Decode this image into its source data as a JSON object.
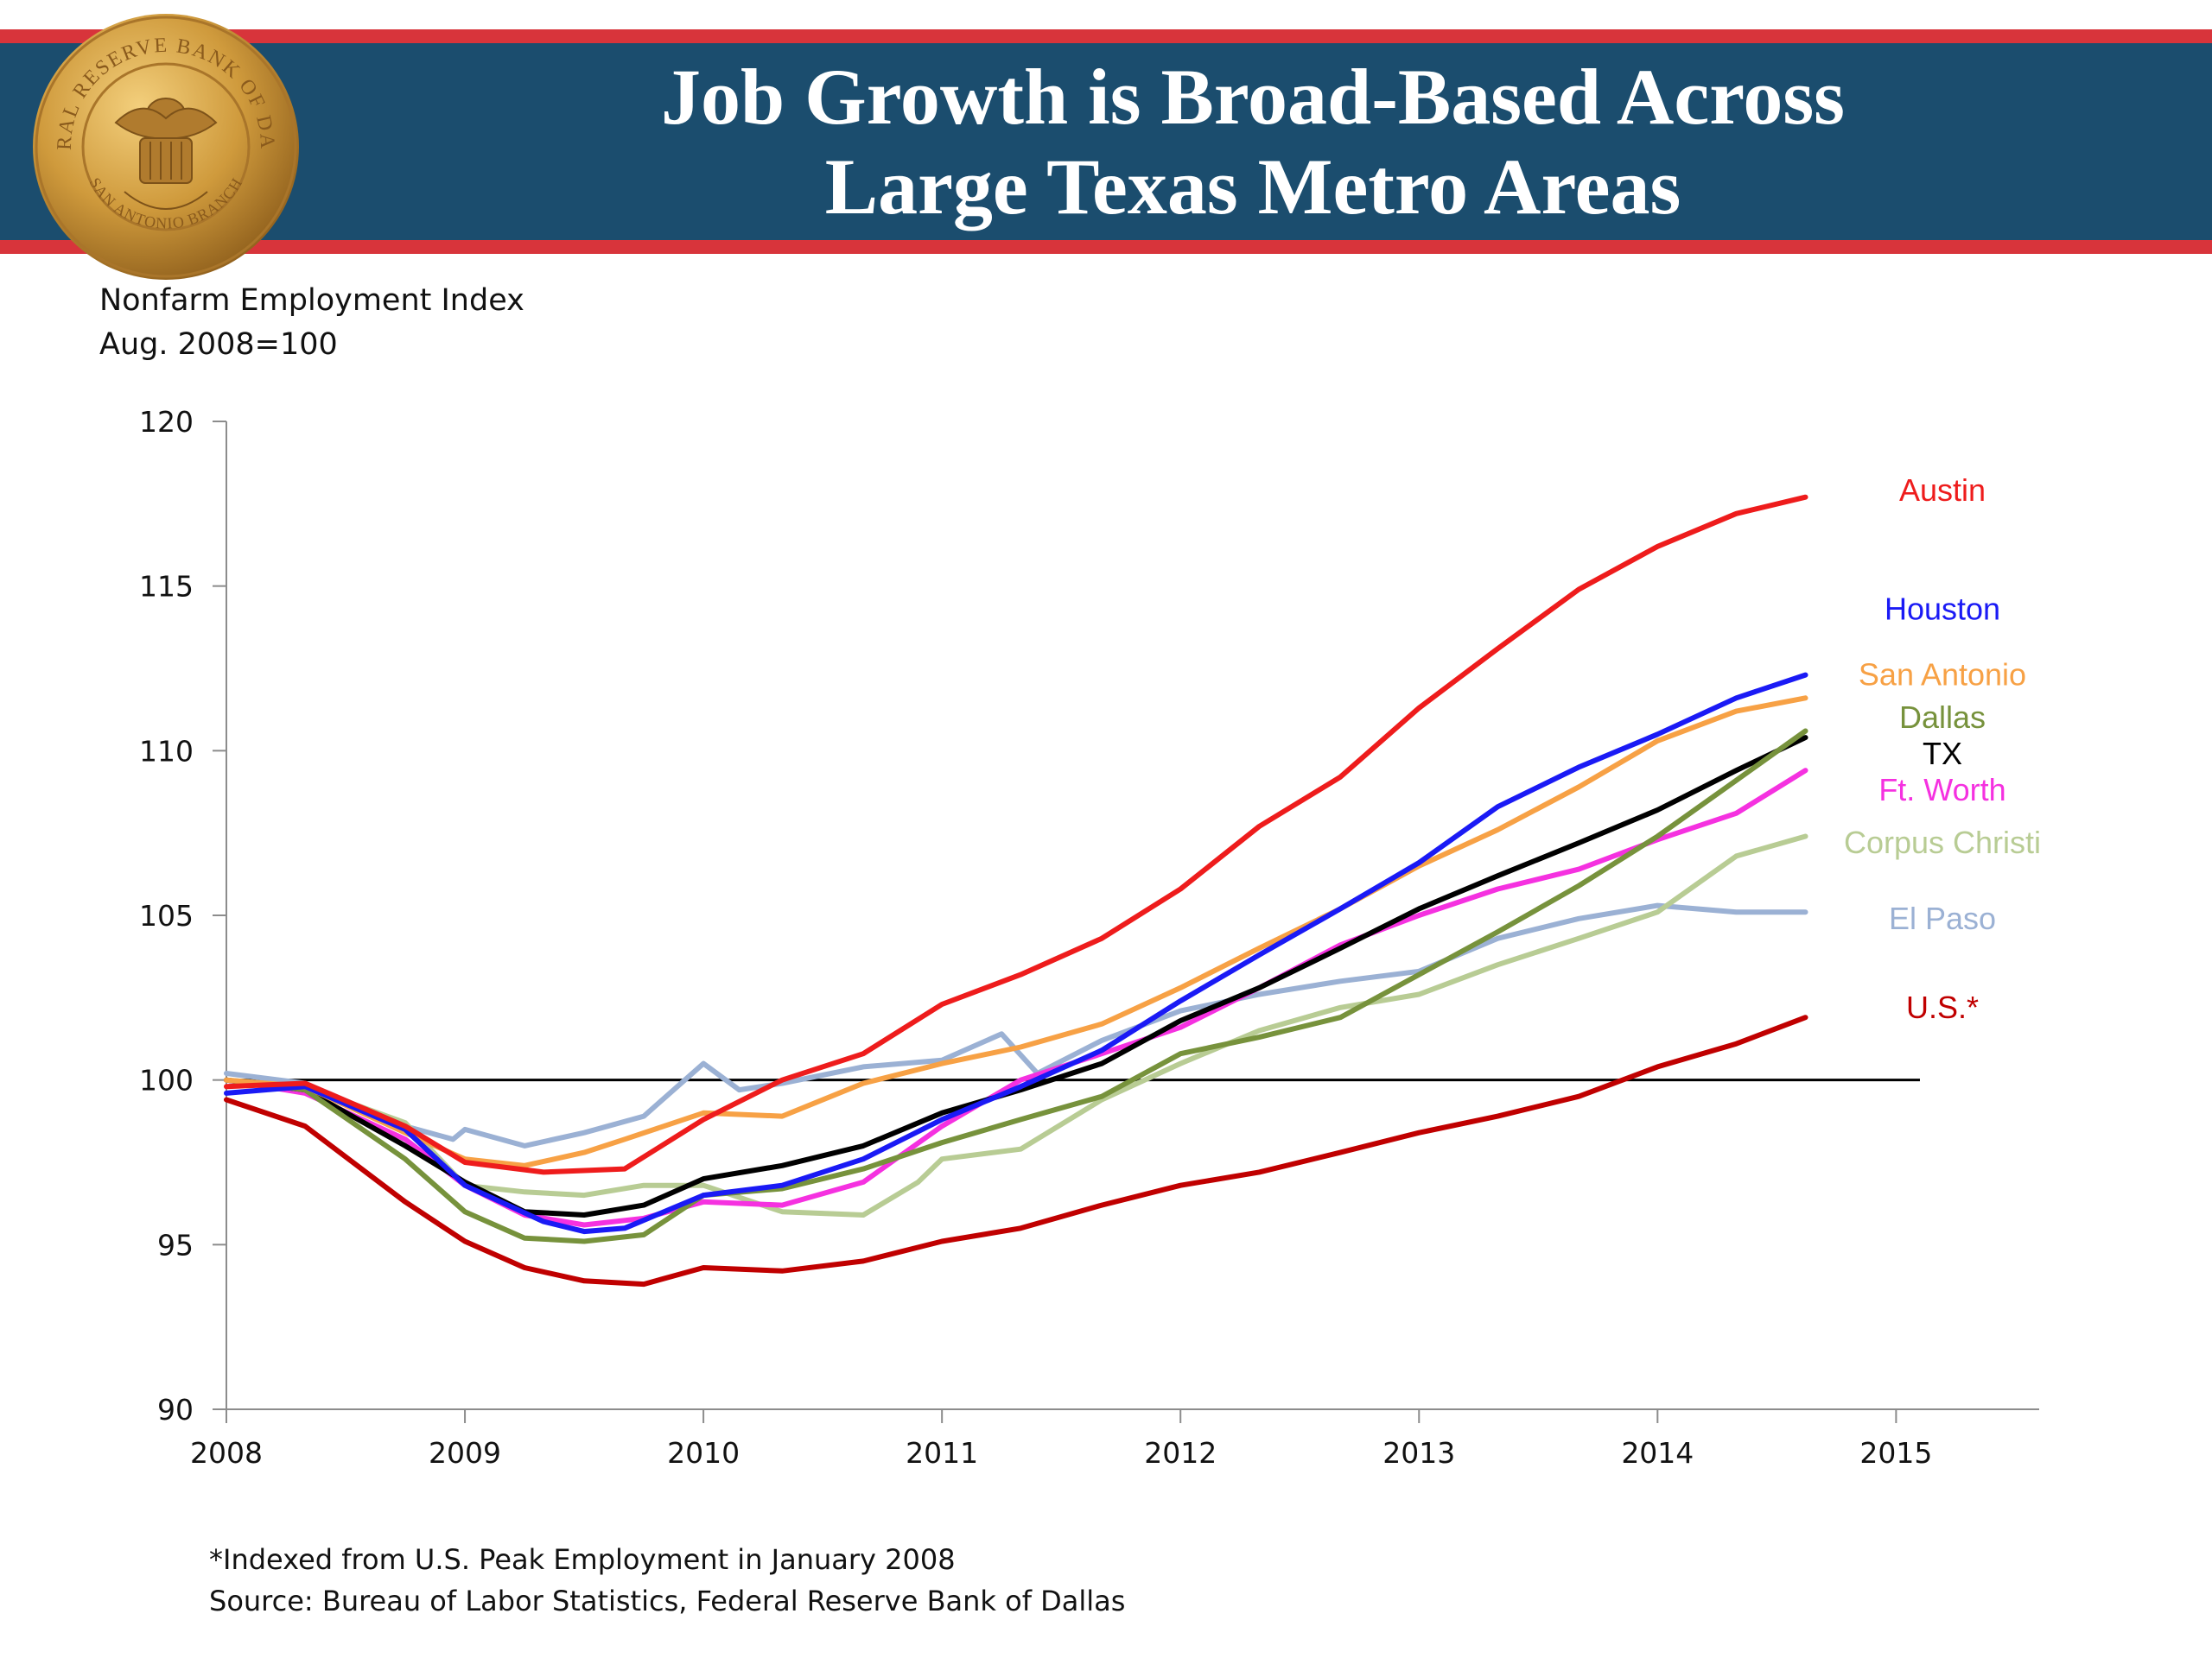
{
  "header": {
    "title_line1": "Job Growth is Broad-Based Across",
    "title_line2": "Large Texas Metro Areas",
    "seal_text": "FEDERAL RESERVE BANK OF DALLAS",
    "seal_branch": "SAN ANTONIO BRANCH"
  },
  "colors": {
    "banner_bg": "#1b4d6e",
    "banner_stripe": "#d8343b",
    "seal_gold": "#c9973a"
  },
  "chart_data": {
    "type": "line",
    "ylabel_line1": "Nonfarm  Employment Index",
    "ylabel_line2": "Aug. 2008=100",
    "xlim": [
      2008,
      2015.6
    ],
    "ylim": [
      90,
      120
    ],
    "x_ticks": [
      "2008",
      "2009",
      "2010",
      "2011",
      "2012",
      "2013",
      "2014",
      "2015"
    ],
    "y_ticks": [
      "90",
      "95",
      "100",
      "105",
      "110",
      "115",
      "120"
    ],
    "reference_line": 100,
    "reference_line_x": [
      2008,
      2015.1
    ],
    "grid": false,
    "series": [
      {
        "name": "Austin",
        "color": "#ee1c1c",
        "points": [
          [
            2008.0,
            99.8
          ],
          [
            2008.33,
            99.9
          ],
          [
            2008.75,
            98.6
          ],
          [
            2009.0,
            97.5
          ],
          [
            2009.33,
            97.2
          ],
          [
            2009.67,
            97.3
          ],
          [
            2010.0,
            98.8
          ],
          [
            2010.33,
            100.0
          ],
          [
            2010.67,
            100.8
          ],
          [
            2011.0,
            102.3
          ],
          [
            2011.33,
            103.2
          ],
          [
            2011.67,
            104.3
          ],
          [
            2012.0,
            105.8
          ],
          [
            2012.33,
            107.7
          ],
          [
            2012.67,
            109.2
          ],
          [
            2013.0,
            111.3
          ],
          [
            2013.33,
            113.1
          ],
          [
            2013.67,
            114.9
          ],
          [
            2014.0,
            116.2
          ],
          [
            2014.33,
            117.2
          ],
          [
            2014.62,
            117.7
          ]
        ]
      },
      {
        "name": "Houston",
        "color": "#1a1af5",
        "points": [
          [
            2008.0,
            99.6
          ],
          [
            2008.33,
            99.8
          ],
          [
            2008.75,
            98.5
          ],
          [
            2009.0,
            96.8
          ],
          [
            2009.33,
            95.7
          ],
          [
            2009.5,
            95.4
          ],
          [
            2009.67,
            95.5
          ],
          [
            2010.0,
            96.5
          ],
          [
            2010.33,
            96.8
          ],
          [
            2010.67,
            97.6
          ],
          [
            2011.0,
            98.8
          ],
          [
            2011.33,
            99.8
          ],
          [
            2011.67,
            100.9
          ],
          [
            2012.0,
            102.4
          ],
          [
            2012.33,
            103.8
          ],
          [
            2012.67,
            105.2
          ],
          [
            2013.0,
            106.6
          ],
          [
            2013.33,
            108.3
          ],
          [
            2013.67,
            109.5
          ],
          [
            2014.0,
            110.5
          ],
          [
            2014.33,
            111.6
          ],
          [
            2014.62,
            112.3
          ]
        ]
      },
      {
        "name": "San Antonio",
        "color": "#f7a145",
        "points": [
          [
            2008.0,
            100.0
          ],
          [
            2008.33,
            99.8
          ],
          [
            2008.75,
            98.4
          ],
          [
            2009.0,
            97.6
          ],
          [
            2009.25,
            97.4
          ],
          [
            2009.5,
            97.8
          ],
          [
            2009.67,
            98.2
          ],
          [
            2010.0,
            99.0
          ],
          [
            2010.33,
            98.9
          ],
          [
            2010.67,
            99.9
          ],
          [
            2011.0,
            100.5
          ],
          [
            2011.33,
            101.0
          ],
          [
            2011.67,
            101.7
          ],
          [
            2012.0,
            102.8
          ],
          [
            2012.33,
            104.0
          ],
          [
            2012.67,
            105.2
          ],
          [
            2013.0,
            106.5
          ],
          [
            2013.33,
            107.6
          ],
          [
            2013.67,
            108.9
          ],
          [
            2014.0,
            110.3
          ],
          [
            2014.33,
            111.2
          ],
          [
            2014.62,
            111.6
          ]
        ]
      },
      {
        "name": "Dallas",
        "color": "#77923c",
        "points": [
          [
            2008.0,
            100.0
          ],
          [
            2008.33,
            99.7
          ],
          [
            2008.75,
            97.6
          ],
          [
            2009.0,
            96.0
          ],
          [
            2009.25,
            95.2
          ],
          [
            2009.5,
            95.1
          ],
          [
            2009.75,
            95.3
          ],
          [
            2010.0,
            96.5
          ],
          [
            2010.33,
            96.7
          ],
          [
            2010.67,
            97.3
          ],
          [
            2011.0,
            98.1
          ],
          [
            2011.33,
            98.8
          ],
          [
            2011.67,
            99.5
          ],
          [
            2012.0,
            100.8
          ],
          [
            2012.33,
            101.3
          ],
          [
            2012.67,
            101.9
          ],
          [
            2013.0,
            103.2
          ],
          [
            2013.33,
            104.5
          ],
          [
            2013.67,
            105.9
          ],
          [
            2014.0,
            107.4
          ],
          [
            2014.33,
            109.1
          ],
          [
            2014.62,
            110.6
          ]
        ]
      },
      {
        "name": "TX",
        "color": "#000000",
        "points": [
          [
            2008.0,
            100.0
          ],
          [
            2008.33,
            99.7
          ],
          [
            2008.75,
            98.0
          ],
          [
            2009.0,
            96.9
          ],
          [
            2009.25,
            96.0
          ],
          [
            2009.5,
            95.9
          ],
          [
            2009.75,
            96.2
          ],
          [
            2010.0,
            97.0
          ],
          [
            2010.33,
            97.4
          ],
          [
            2010.67,
            98.0
          ],
          [
            2011.0,
            99.0
          ],
          [
            2011.33,
            99.7
          ],
          [
            2011.67,
            100.5
          ],
          [
            2012.0,
            101.8
          ],
          [
            2012.33,
            102.8
          ],
          [
            2012.67,
            104.0
          ],
          [
            2013.0,
            105.2
          ],
          [
            2013.33,
            106.2
          ],
          [
            2013.67,
            107.2
          ],
          [
            2014.0,
            108.2
          ],
          [
            2014.33,
            109.4
          ],
          [
            2014.62,
            110.4
          ]
        ]
      },
      {
        "name": "Ft. Worth",
        "color": "#f531e0",
        "points": [
          [
            2008.0,
            100.0
          ],
          [
            2008.33,
            99.6
          ],
          [
            2008.75,
            98.2
          ],
          [
            2009.0,
            96.8
          ],
          [
            2009.25,
            95.9
          ],
          [
            2009.5,
            95.6
          ],
          [
            2009.75,
            95.8
          ],
          [
            2010.0,
            96.3
          ],
          [
            2010.33,
            96.2
          ],
          [
            2010.67,
            96.9
          ],
          [
            2011.0,
            98.6
          ],
          [
            2011.33,
            100.0
          ],
          [
            2011.67,
            100.8
          ],
          [
            2012.0,
            101.6
          ],
          [
            2012.33,
            102.8
          ],
          [
            2012.67,
            104.1
          ],
          [
            2013.0,
            105.0
          ],
          [
            2013.33,
            105.8
          ],
          [
            2013.67,
            106.4
          ],
          [
            2014.0,
            107.3
          ],
          [
            2014.33,
            108.1
          ],
          [
            2014.62,
            109.4
          ]
        ]
      },
      {
        "name": "Corpus Christi",
        "color": "#b8cc94",
        "points": [
          [
            2008.0,
            100.0
          ],
          [
            2008.33,
            99.8
          ],
          [
            2008.75,
            98.7
          ],
          [
            2009.0,
            96.8
          ],
          [
            2009.25,
            96.6
          ],
          [
            2009.5,
            96.5
          ],
          [
            2009.75,
            96.8
          ],
          [
            2010.0,
            96.8
          ],
          [
            2010.33,
            96.0
          ],
          [
            2010.67,
            95.9
          ],
          [
            2010.9,
            96.9
          ],
          [
            2011.0,
            97.6
          ],
          [
            2011.33,
            97.9
          ],
          [
            2011.67,
            99.4
          ],
          [
            2012.0,
            100.5
          ],
          [
            2012.33,
            101.5
          ],
          [
            2012.67,
            102.2
          ],
          [
            2013.0,
            102.6
          ],
          [
            2013.33,
            103.5
          ],
          [
            2013.67,
            104.3
          ],
          [
            2014.0,
            105.1
          ],
          [
            2014.33,
            106.8
          ],
          [
            2014.62,
            107.4
          ]
        ]
      },
      {
        "name": "El Paso",
        "color": "#9bb1d4",
        "points": [
          [
            2008.0,
            100.2
          ],
          [
            2008.33,
            99.9
          ],
          [
            2008.75,
            98.6
          ],
          [
            2008.95,
            98.2
          ],
          [
            2009.0,
            98.5
          ],
          [
            2009.25,
            98.0
          ],
          [
            2009.5,
            98.4
          ],
          [
            2009.75,
            98.9
          ],
          [
            2010.0,
            100.5
          ],
          [
            2010.15,
            99.7
          ],
          [
            2010.33,
            99.9
          ],
          [
            2010.67,
            100.4
          ],
          [
            2011.0,
            100.6
          ],
          [
            2011.25,
            101.4
          ],
          [
            2011.4,
            100.2
          ],
          [
            2011.67,
            101.2
          ],
          [
            2012.0,
            102.1
          ],
          [
            2012.33,
            102.6
          ],
          [
            2012.67,
            103.0
          ],
          [
            2013.0,
            103.3
          ],
          [
            2013.33,
            104.3
          ],
          [
            2013.67,
            104.9
          ],
          [
            2014.0,
            105.3
          ],
          [
            2014.33,
            105.1
          ],
          [
            2014.62,
            105.1
          ]
        ]
      },
      {
        "name": "U.S.*",
        "color": "#c00000",
        "points": [
          [
            2008.0,
            99.4
          ],
          [
            2008.33,
            98.6
          ],
          [
            2008.75,
            96.3
          ],
          [
            2009.0,
            95.1
          ],
          [
            2009.25,
            94.3
          ],
          [
            2009.5,
            93.9
          ],
          [
            2009.75,
            93.8
          ],
          [
            2010.0,
            94.3
          ],
          [
            2010.33,
            94.2
          ],
          [
            2010.67,
            94.5
          ],
          [
            2011.0,
            95.1
          ],
          [
            2011.33,
            95.5
          ],
          [
            2011.67,
            96.2
          ],
          [
            2012.0,
            96.8
          ],
          [
            2012.33,
            97.2
          ],
          [
            2012.67,
            97.8
          ],
          [
            2013.0,
            98.4
          ],
          [
            2013.33,
            98.9
          ],
          [
            2013.67,
            99.5
          ],
          [
            2014.0,
            100.4
          ],
          [
            2014.33,
            101.1
          ],
          [
            2014.62,
            101.9
          ]
        ]
      }
    ],
    "labels": [
      {
        "text": "Austin",
        "color": "#ee1c1c",
        "y": 117.9
      },
      {
        "text": "Houston",
        "color": "#1a1af5",
        "y": 114.3
      },
      {
        "text": "San Antonio",
        "color": "#f7a145",
        "y": 112.3
      },
      {
        "text": "Dallas",
        "color": "#77923c",
        "y": 111.0
      },
      {
        "text": "TX",
        "color": "#000000",
        "y": 109.9
      },
      {
        "text": "Ft. Worth",
        "color": "#f531e0",
        "y": 108.8
      },
      {
        "text": "Corpus Christi",
        "color": "#b8cc94",
        "y": 107.2
      },
      {
        "text": "El Paso",
        "color": "#9bb1d4",
        "y": 104.9
      },
      {
        "text": "U.S.*",
        "color": "#c00000",
        "y": 102.2
      }
    ]
  },
  "footnotes": {
    "line1": "*Indexed from U.S. Peak Employment in January 2008",
    "line2": "Source: Bureau of Labor Statistics, Federal Reserve Bank of Dallas"
  }
}
